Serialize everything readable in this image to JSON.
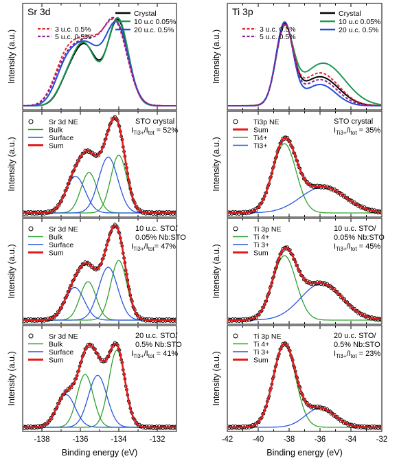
{
  "figure": {
    "xlabel": "Binding energy (eV)",
    "ylabel": "Intensity (a.u.)"
  },
  "colors": {
    "crystal": "#000000",
    "uc10_005": "#1a9850",
    "uc20_05": "#1f4fd8",
    "uc3": "#e8232b",
    "uc5": "#8e1a9c",
    "bulk": "#2ca02c",
    "surface": "#2754e0",
    "sum": "#e41a1c",
    "data_points": "#000000"
  },
  "chart_data": [
    {
      "id": "sr-top",
      "type": "line",
      "title": "Sr 3d",
      "xlim": [
        -139,
        -131
      ],
      "ylabel": "Intensity (a.u.)",
      "legend": [
        {
          "label": "Crystal",
          "style": "solid",
          "color": "#000000"
        },
        {
          "label": "10 u.c 0.05%",
          "style": "solid",
          "color": "#1a9850"
        },
        {
          "label": "20 u.c. 0.5%",
          "style": "solid",
          "color": "#1f4fd8"
        },
        {
          "label": "3 u.c. 0.5%",
          "style": "dash",
          "color": "#e8232b"
        },
        {
          "label": "5 u.c. 0.5%",
          "style": "dash",
          "color": "#8e1a9c"
        }
      ],
      "series": [
        {
          "name": "Crystal",
          "color": "#000000",
          "peaks": [
            [
              -134.05,
              0.88,
              0.55
            ],
            [
              -135.75,
              0.6,
              0.6
            ],
            [
              -136.7,
              0.2,
              0.5
            ]
          ]
        },
        {
          "name": "10 u.c 0.05%",
          "color": "#1a9850",
          "peaks": [
            [
              -134.05,
              0.9,
              0.55
            ],
            [
              -135.8,
              0.62,
              0.6
            ],
            [
              -136.75,
              0.18,
              0.5
            ]
          ]
        },
        {
          "name": "20 u.c. 0.5%",
          "color": "#1f4fd8",
          "peaks": [
            [
              -134.1,
              0.82,
              0.6
            ],
            [
              -135.7,
              0.6,
              0.7
            ],
            [
              -136.8,
              0.32,
              0.55
            ]
          ]
        },
        {
          "name": "3 u.c. 0.5%",
          "color": "#e8232b",
          "dash": true,
          "peaks": [
            [
              -134.15,
              0.78,
              0.62
            ],
            [
              -135.6,
              0.62,
              0.75
            ],
            [
              -136.8,
              0.4,
              0.6
            ]
          ]
        },
        {
          "name": "5 u.c. 0.5%",
          "color": "#8e1a9c",
          "dash": true,
          "peaks": [
            [
              -134.15,
              0.8,
              0.62
            ],
            [
              -135.6,
              0.6,
              0.75
            ],
            [
              -136.8,
              0.36,
              0.6
            ]
          ]
        }
      ]
    },
    {
      "id": "ti-top",
      "type": "line",
      "title": "Ti 3p",
      "xlim": [
        -42,
        -32
      ],
      "ylabel": "Intensity (a.u.)",
      "legend": [
        {
          "label": "Crystal",
          "style": "solid",
          "color": "#000000"
        },
        {
          "label": "10 u.c 0.05%",
          "style": "solid",
          "color": "#1a9850"
        },
        {
          "label": "20 u.c. 0.5%",
          "style": "solid",
          "color": "#1f4fd8"
        },
        {
          "label": "3 u.c. 0.5%",
          "style": "dash",
          "color": "#e8232b"
        },
        {
          "label": "5 u.c. 0.5%",
          "style": "dash",
          "color": "#8e1a9c"
        }
      ],
      "series": [
        {
          "name": "Crystal",
          "color": "#000000",
          "peaks": [
            [
              -38.3,
              0.8,
              0.55
            ],
            [
              -36.0,
              0.3,
              1.2
            ]
          ]
        },
        {
          "name": "10 u.c 0.05%",
          "color": "#1a9850",
          "peaks": [
            [
              -38.3,
              0.74,
              0.55
            ],
            [
              -35.8,
              0.44,
              1.4
            ]
          ]
        },
        {
          "name": "20 u.c. 0.5%",
          "color": "#1f4fd8",
          "peaks": [
            [
              -38.3,
              0.85,
              0.55
            ],
            [
              -36.0,
              0.22,
              1.0
            ]
          ]
        },
        {
          "name": "3 u.c. 0.5%",
          "color": "#e8232b",
          "dash": true,
          "peaks": [
            [
              -38.3,
              0.78,
              0.55
            ],
            [
              -36.0,
              0.34,
              1.2
            ]
          ]
        },
        {
          "name": "5 u.c. 0.5%",
          "color": "#8e1a9c",
          "dash": true,
          "peaks": [
            [
              -38.3,
              0.82,
              0.55
            ],
            [
              -36.0,
              0.27,
              1.1
            ]
          ]
        }
      ]
    },
    {
      "id": "sr-crystal",
      "type": "line",
      "xlim": [
        -139,
        -131
      ],
      "ylabel": "Intensity (a.u.)",
      "legend": [
        {
          "label": "Sr 3d NE",
          "style": "circle",
          "color": "#000000"
        },
        {
          "label": "Bulk",
          "style": "solid",
          "color": "#2ca02c"
        },
        {
          "label": "Surface",
          "style": "solid",
          "color": "#2754e0"
        },
        {
          "label": "Sum",
          "style": "thick",
          "color": "#e41a1c"
        }
      ],
      "annotation": {
        "lines": [
          "STO crystal"
        ],
        "ratio_prefix": "I",
        "ratio_sub1": "Ti3+",
        "ratio_mid": "/I",
        "ratio_sub2": "tot",
        "ratio_value": " = 52%"
      },
      "bulk": [
        [
          -134.0,
          0.6,
          0.42
        ],
        [
          -135.55,
          0.42,
          0.42
        ]
      ],
      "surface": [
        [
          -134.55,
          0.58,
          0.5
        ],
        [
          -136.25,
          0.38,
          0.5
        ]
      ]
    },
    {
      "id": "ti-crystal",
      "type": "line",
      "xlim": [
        -42,
        -32
      ],
      "ylabel": "Intensity (a.u.)",
      "legend": [
        {
          "label": "Ti3p NE",
          "style": "circle",
          "color": "#000000"
        },
        {
          "label": "Sum",
          "style": "thick",
          "color": "#e41a1c"
        },
        {
          "label": "Ti4+",
          "style": "solid",
          "color": "#2ca02c"
        },
        {
          "label": "Ti3+",
          "style": "solid",
          "color": "#2754e0"
        }
      ],
      "annotation": {
        "lines": [
          "STO crystal"
        ],
        "ratio_prefix": "I",
        "ratio_sub1": "Ti3+",
        "ratio_mid": "/I",
        "ratio_sub2": "tot",
        "ratio_value": " = 35%"
      },
      "bulk": [
        [
          -38.3,
          0.72,
          0.75
        ]
      ],
      "surface": [
        [
          -35.8,
          0.27,
          1.45
        ]
      ]
    },
    {
      "id": "sr-10uc",
      "type": "line",
      "xlim": [
        -139,
        -131
      ],
      "ylabel": "Intensity (a.u.)",
      "legend": [
        {
          "label": "Sr 3d NE",
          "style": "circle",
          "color": "#000000"
        },
        {
          "label": "Bulk",
          "style": "solid",
          "color": "#2ca02c"
        },
        {
          "label": "Surface",
          "style": "solid",
          "color": "#2754e0"
        },
        {
          "label": "Sum",
          "style": "thick",
          "color": "#e41a1c"
        }
      ],
      "annotation": {
        "lines": [
          "10 u.c. STO/",
          "0.05% Nb:STO"
        ],
        "ratio_prefix": "I",
        "ratio_sub1": "Ti3+",
        "ratio_mid": "/I",
        "ratio_sub2": "tot",
        "ratio_value": "= 47%"
      },
      "bulk": [
        [
          -134.0,
          0.62,
          0.42
        ],
        [
          -135.6,
          0.4,
          0.42
        ]
      ],
      "surface": [
        [
          -134.55,
          0.55,
          0.5
        ],
        [
          -136.3,
          0.34,
          0.5
        ]
      ]
    },
    {
      "id": "ti-10uc",
      "type": "line",
      "xlim": [
        -42,
        -32
      ],
      "ylabel": "Intensity (a.u.)",
      "legend": [
        {
          "label": "Ti 3p NE",
          "style": "circle",
          "color": "#000000"
        },
        {
          "label": "Ti 4+",
          "style": "solid",
          "color": "#2ca02c"
        },
        {
          "label": "Ti 3+",
          "style": "solid",
          "color": "#2754e0"
        },
        {
          "label": "Sum",
          "style": "thick",
          "color": "#e41a1c"
        }
      ],
      "annotation": {
        "lines": [
          "10 u.c. STO/",
          "0.05% Nb:STO"
        ],
        "ratio_prefix": "I",
        "ratio_sub1": "Ti3+",
        "ratio_mid": "/I",
        "ratio_sub2": "tot",
        "ratio_value": " = 45%"
      },
      "bulk": [
        [
          -38.3,
          0.67,
          0.75
        ]
      ],
      "surface": [
        [
          -35.9,
          0.38,
          1.35
        ]
      ]
    },
    {
      "id": "sr-20uc",
      "type": "line",
      "xlim": [
        -139,
        -131
      ],
      "xticks": [
        -138,
        -136,
        -134,
        -132
      ],
      "ylabel": "Intensity (a.u.)",
      "xlabel": "Binding energy (eV)",
      "legend": [
        {
          "label": "Sr 3d NE",
          "style": "circle",
          "color": "#000000"
        },
        {
          "label": "Bulk",
          "style": "solid",
          "color": "#2ca02c"
        },
        {
          "label": "Surface",
          "style": "solid",
          "color": "#2754e0"
        },
        {
          "label": "Sum",
          "style": "thick",
          "color": "#e41a1c"
        }
      ],
      "annotation": {
        "lines": [
          "20 u.c. STO/",
          "0.5% Nb:STO"
        ],
        "ratio_prefix": "I",
        "ratio_sub1": "Ti3+",
        "ratio_mid": "/I",
        "ratio_sub2": "tot",
        "ratio_value": " = 41%"
      },
      "bulk": [
        [
          -134.1,
          0.8,
          0.42
        ],
        [
          -135.75,
          0.55,
          0.42
        ]
      ],
      "surface": [
        [
          -135.1,
          0.54,
          0.48
        ],
        [
          -136.75,
          0.34,
          0.48
        ]
      ]
    },
    {
      "id": "ti-20uc",
      "type": "line",
      "xlim": [
        -42,
        -32
      ],
      "xticks": [
        -42,
        -40,
        -38,
        -36,
        -34,
        -32
      ],
      "ylabel": "Intensity (a.u.)",
      "xlabel": "Binding energy (eV)",
      "legend": [
        {
          "label": "Ti 3p NE",
          "style": "circle",
          "color": "#000000"
        },
        {
          "label": "Ti 4+",
          "style": "solid",
          "color": "#2ca02c"
        },
        {
          "label": "Ti 3+",
          "style": "solid",
          "color": "#2754e0"
        },
        {
          "label": "Sum",
          "style": "thick",
          "color": "#e41a1c"
        }
      ],
      "annotation": {
        "lines": [
          "20 u.c. STO/",
          "0.5% Nb:STO"
        ],
        "ratio_prefix": "I",
        "ratio_sub1": "Ti3+",
        "ratio_mid": "/I",
        "ratio_sub2": "tot",
        "ratio_value": " = 23%"
      },
      "bulk": [
        [
          -38.3,
          0.86,
          0.72
        ]
      ],
      "surface": [
        [
          -36.0,
          0.2,
          0.95
        ]
      ]
    }
  ]
}
